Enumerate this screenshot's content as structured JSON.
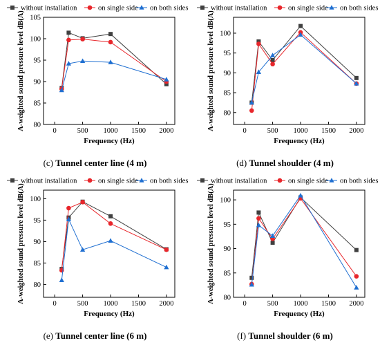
{
  "legend_labels": [
    "without installation",
    "on single side",
    "on both sides"
  ],
  "colors": {
    "without": "#404040",
    "single": "#e8262b",
    "both": "#1f6fd1",
    "axis": "#000000"
  },
  "chart_data": [
    {
      "type": "line",
      "letter": "(c)",
      "title": "Tunnel center line (4 m)",
      "xlabel": "Frequency (Hz)",
      "ylabel": "A-weighted sound pressure level dB(A)",
      "xlim": [
        -200,
        2150
      ],
      "ylim": [
        80,
        105
      ],
      "xticks": [
        0,
        500,
        1000,
        1500,
        2000
      ],
      "yticks": [
        80,
        85,
        90,
        95,
        100,
        105
      ],
      "legend_position": "top",
      "series": [
        {
          "name": "without installation",
          "x": [
            125,
            250,
            500,
            1000,
            2000
          ],
          "values": [
            88.5,
            101.4,
            100.1,
            101.1,
            89.4
          ]
        },
        {
          "name": "on single side",
          "x": [
            125,
            250,
            500,
            1000,
            2000
          ],
          "values": [
            88.3,
            99.7,
            99.9,
            99.2,
            90.0
          ]
        },
        {
          "name": "on both sides",
          "x": [
            125,
            250,
            500,
            1000,
            2000
          ],
          "values": [
            88.0,
            94.2,
            94.8,
            94.5,
            90.5
          ]
        }
      ]
    },
    {
      "type": "line",
      "letter": "(d)",
      "title": "Tunnel shoulder (4 m)",
      "xlabel": "Frequency (Hz)",
      "ylabel": "A-weighted sound pressure level dB(A)",
      "xlim": [
        -200,
        2150
      ],
      "ylim": [
        77,
        104
      ],
      "xticks": [
        0,
        500,
        1000,
        1500,
        2000
      ],
      "yticks": [
        80,
        85,
        90,
        95,
        100
      ],
      "legend_position": "top",
      "series": [
        {
          "name": "without installation",
          "x": [
            125,
            250,
            500,
            1000,
            2000
          ],
          "values": [
            82.5,
            97.9,
            93.2,
            101.8,
            88.7
          ]
        },
        {
          "name": "on single side",
          "x": [
            125,
            250,
            500,
            1000,
            2000
          ],
          "values": [
            80.5,
            97.3,
            92.2,
            100.2,
            87.3
          ]
        },
        {
          "name": "on both sides",
          "x": [
            125,
            250,
            500,
            1000,
            2000
          ],
          "values": [
            82.5,
            90.2,
            94.4,
            99.6,
            87.3
          ]
        }
      ]
    },
    {
      "type": "line",
      "letter": "(e)",
      "title": "Tunnel center line (6 m)",
      "xlabel": "Frequency (Hz)",
      "ylabel": "A-weighted sound pressure level dB(A)",
      "xlim": [
        -200,
        2150
      ],
      "ylim": [
        77,
        102
      ],
      "xticks": [
        0,
        500,
        1000,
        1500,
        2000
      ],
      "yticks": [
        80,
        85,
        90,
        95,
        100
      ],
      "legend_position": "top",
      "series": [
        {
          "name": "without installation",
          "x": [
            125,
            250,
            500,
            1000,
            2000
          ],
          "values": [
            83.6,
            95.6,
            99.3,
            95.9,
            88.2
          ]
        },
        {
          "name": "on single side",
          "x": [
            125,
            250,
            500,
            1000,
            2000
          ],
          "values": [
            83.3,
            97.8,
            99.2,
            94.2,
            88.1
          ]
        },
        {
          "name": "on both sides",
          "x": [
            125,
            250,
            500,
            1000,
            2000
          ],
          "values": [
            81.0,
            95.2,
            88.1,
            90.2,
            84.0
          ]
        }
      ]
    },
    {
      "type": "line",
      "letter": "(f)",
      "title": "Tunnel shoulder (6 m)",
      "xlabel": "Frequency (Hz)",
      "ylabel": "A-weighted sound pressure level dB(A)",
      "xlim": [
        -200,
        2150
      ],
      "ylim": [
        80,
        102
      ],
      "xticks": [
        0,
        500,
        1000,
        1500,
        2000
      ],
      "yticks": [
        80,
        85,
        90,
        95,
        100
      ],
      "legend_position": "top",
      "series": [
        {
          "name": "without installation",
          "x": [
            125,
            250,
            500,
            1000,
            2000
          ],
          "values": [
            84.0,
            97.4,
            91.2,
            100.5,
            89.7
          ]
        },
        {
          "name": "on single side",
          "x": [
            125,
            250,
            500,
            1000,
            2000
          ],
          "values": [
            82.7,
            96.2,
            92.0,
            100.3,
            84.3
          ]
        },
        {
          "name": "on both sides",
          "x": [
            125,
            250,
            500,
            1000,
            2000
          ],
          "values": [
            82.6,
            94.8,
            92.6,
            100.9,
            82.0
          ]
        }
      ]
    }
  ]
}
